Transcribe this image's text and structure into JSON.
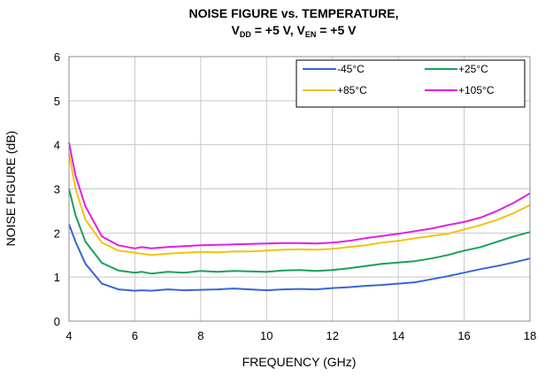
{
  "chart_data": {
    "type": "line",
    "title": {
      "line1": "NOISE FIGURE vs. TEMPERATURE,",
      "line2_parts": [
        {
          "text": "V",
          "sub": false
        },
        {
          "text": "DD",
          "sub": true
        },
        {
          "text": " = +5 V, V",
          "sub": false
        },
        {
          "text": "EN",
          "sub": true
        },
        {
          "text": " = +5 V",
          "sub": false
        }
      ]
    },
    "xlabel": "FREQUENCY (GHz)",
    "ylabel": "NOISE FIGURE (dB)",
    "xlim": [
      4,
      18
    ],
    "ylim": [
      0,
      6
    ],
    "xticks": [
      "4",
      "6",
      "8",
      "10",
      "12",
      "14",
      "16",
      "18"
    ],
    "yticks": [
      "0",
      "1",
      "2",
      "3",
      "4",
      "5",
      "6"
    ],
    "grid": true,
    "legend_position": "top-right",
    "series": [
      {
        "name": "-45°C",
        "color": "#3a64d8",
        "x": [
          4,
          4.2,
          4.5,
          5,
          5.5,
          6,
          6.2,
          6.5,
          7,
          7.5,
          8,
          8.5,
          9,
          9.5,
          10,
          10.5,
          11,
          11.5,
          12,
          12.5,
          13,
          13.5,
          14,
          14.5,
          15,
          15.5,
          16,
          16.5,
          17,
          17.5,
          18
        ],
        "values": [
          2.2,
          1.8,
          1.3,
          0.85,
          0.72,
          0.69,
          0.7,
          0.69,
          0.72,
          0.7,
          0.71,
          0.72,
          0.74,
          0.72,
          0.7,
          0.72,
          0.73,
          0.72,
          0.75,
          0.77,
          0.8,
          0.82,
          0.85,
          0.88,
          0.95,
          1.02,
          1.1,
          1.18,
          1.25,
          1.33,
          1.42
        ]
      },
      {
        "name": "+25°C",
        "color": "#1aa05a",
        "x": [
          4,
          4.2,
          4.5,
          5,
          5.5,
          6,
          6.2,
          6.5,
          7,
          7.5,
          8,
          8.5,
          9,
          9.5,
          10,
          10.5,
          11,
          11.5,
          12,
          12.5,
          13,
          13.5,
          14,
          14.5,
          15,
          15.5,
          16,
          16.5,
          17,
          17.5,
          18
        ],
        "values": [
          3.0,
          2.4,
          1.8,
          1.32,
          1.15,
          1.1,
          1.12,
          1.08,
          1.12,
          1.1,
          1.14,
          1.12,
          1.14,
          1.13,
          1.12,
          1.15,
          1.16,
          1.14,
          1.16,
          1.2,
          1.25,
          1.3,
          1.33,
          1.36,
          1.42,
          1.5,
          1.6,
          1.68,
          1.8,
          1.92,
          2.02
        ]
      },
      {
        "name": "+85°C",
        "color": "#f4c20d",
        "x": [
          4,
          4.2,
          4.5,
          5,
          5.5,
          6,
          6.2,
          6.5,
          7,
          7.5,
          8,
          8.5,
          9,
          9.5,
          10,
          10.5,
          11,
          11.5,
          12,
          12.5,
          13,
          13.5,
          14,
          14.5,
          15,
          15.5,
          16,
          16.5,
          17,
          17.5,
          18
        ],
        "values": [
          3.8,
          3.0,
          2.3,
          1.78,
          1.6,
          1.55,
          1.53,
          1.5,
          1.53,
          1.55,
          1.57,
          1.56,
          1.58,
          1.58,
          1.6,
          1.62,
          1.63,
          1.62,
          1.64,
          1.68,
          1.72,
          1.78,
          1.82,
          1.88,
          1.93,
          1.98,
          2.08,
          2.18,
          2.3,
          2.45,
          2.63
        ]
      },
      {
        "name": "+105°C",
        "color": "#e020e0",
        "x": [
          4,
          4.2,
          4.5,
          5,
          5.5,
          6,
          6.2,
          6.5,
          7,
          7.5,
          8,
          8.5,
          9,
          9.5,
          10,
          10.5,
          11,
          11.5,
          12,
          12.5,
          13,
          13.5,
          14,
          14.5,
          15,
          15.5,
          16,
          16.5,
          17,
          17.5,
          18
        ],
        "values": [
          4.05,
          3.3,
          2.6,
          1.92,
          1.72,
          1.65,
          1.68,
          1.65,
          1.68,
          1.7,
          1.72,
          1.73,
          1.74,
          1.75,
          1.76,
          1.77,
          1.77,
          1.76,
          1.78,
          1.82,
          1.88,
          1.93,
          1.98,
          2.04,
          2.1,
          2.18,
          2.25,
          2.35,
          2.5,
          2.68,
          2.9
        ]
      }
    ]
  }
}
